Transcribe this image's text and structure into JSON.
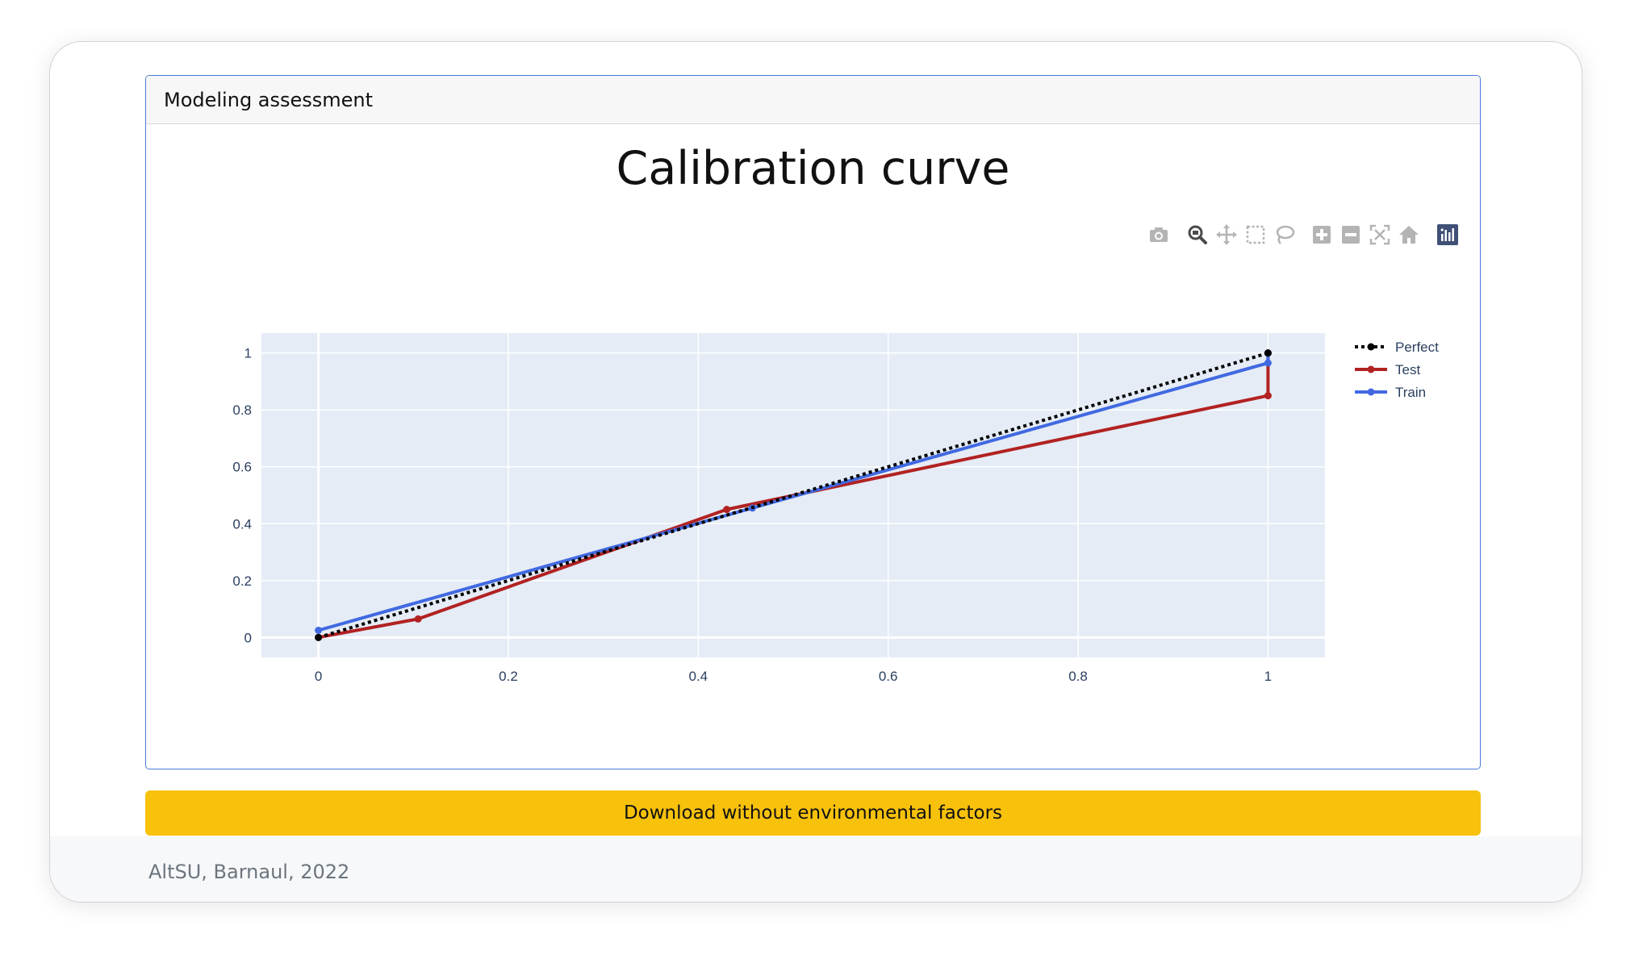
{
  "card": {
    "title": "Modeling assessment"
  },
  "download": {
    "label": "Download without environmental factors"
  },
  "footer": {
    "text": "AltSU, Barnaul, 2022"
  },
  "modebar": {
    "buttons": [
      "camera-icon",
      "zoom-icon",
      "pan-icon",
      "box-select-icon",
      "lasso-select-icon",
      "zoom-in-icon",
      "zoom-out-icon",
      "autoscale-icon",
      "reset-axes-icon",
      "plotly-logo-icon"
    ]
  },
  "colors": {
    "perfect": "#000000",
    "test": "#b22222",
    "train": "#4169e1",
    "plot_bg": "#e5ecf6"
  },
  "chart_data": {
    "type": "line",
    "title": "Calibration curve",
    "xlabel": "",
    "ylabel": "",
    "xlim": [
      -0.06,
      1.06
    ],
    "ylim": [
      -0.07,
      1.07
    ],
    "xticks": [
      0,
      0.2,
      0.4,
      0.6,
      0.8,
      1
    ],
    "xtick_labels": [
      "0",
      "0.2",
      "0.4",
      "0.6",
      "0.8",
      "1"
    ],
    "yticks": [
      0,
      0.2,
      0.4,
      0.6,
      0.8,
      1
    ],
    "ytick_labels": [
      "0",
      "0.2",
      "0.4",
      "0.6",
      "0.8",
      "1"
    ],
    "grid": true,
    "legend": "right",
    "series": [
      {
        "name": "Perfect",
        "style": "dotted",
        "x": [
          0,
          1
        ],
        "y": [
          0,
          1
        ]
      },
      {
        "name": "Test",
        "style": "solid",
        "x": [
          0,
          0.105,
          0.43,
          1,
          1
        ],
        "y": [
          0,
          0.065,
          0.45,
          0.85,
          1
        ]
      },
      {
        "name": "Train",
        "style": "solid",
        "x": [
          0,
          0.457,
          1,
          1
        ],
        "y": [
          0.025,
          0.455,
          0.965,
          1
        ]
      }
    ]
  }
}
